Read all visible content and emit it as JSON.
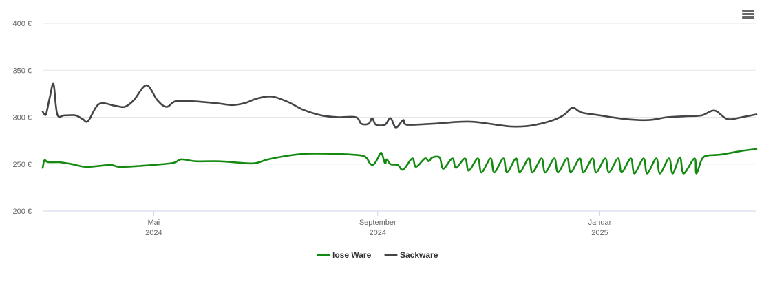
{
  "menu_icon": "hamburger-menu-icon",
  "chart_data": {
    "type": "line",
    "title": "",
    "xlabel": "",
    "ylabel": "",
    "ylim": [
      200,
      400
    ],
    "yticks": [
      {
        "value": 200,
        "label": "200 €"
      },
      {
        "value": 250,
        "label": "250 €"
      },
      {
        "value": 300,
        "label": "300 €"
      },
      {
        "value": 350,
        "label": "350 €"
      },
      {
        "value": 400,
        "label": "400 €"
      }
    ],
    "xlim": [
      "2024-03-01",
      "2025-03-28"
    ],
    "xticks": [
      {
        "date": "2024-05-01",
        "month": "Mai",
        "year": "2024"
      },
      {
        "date": "2024-09-01",
        "month": "September",
        "year": "2024"
      },
      {
        "date": "2025-01-01",
        "month": "Januar",
        "year": "2025"
      }
    ],
    "grid": true,
    "legend_position": "bottom-center",
    "series": [
      {
        "name": "lose Ware",
        "color": "#138A0F",
        "points": [
          [
            "2024-03-01",
            246
          ],
          [
            "2024-03-02",
            254
          ],
          [
            "2024-03-04",
            252
          ],
          [
            "2024-03-10",
            252
          ],
          [
            "2024-03-17",
            250
          ],
          [
            "2024-03-25",
            247
          ],
          [
            "2024-04-07",
            249
          ],
          [
            "2024-04-12",
            247
          ],
          [
            "2024-04-23",
            248
          ],
          [
            "2024-05-11",
            251
          ],
          [
            "2024-05-16",
            255
          ],
          [
            "2024-05-24",
            253
          ],
          [
            "2024-06-06",
            253
          ],
          [
            "2024-06-20",
            251
          ],
          [
            "2024-06-26",
            251
          ],
          [
            "2024-07-03",
            255
          ],
          [
            "2024-07-14",
            259
          ],
          [
            "2024-07-24",
            261
          ],
          [
            "2024-08-06",
            261
          ],
          [
            "2024-08-18",
            260
          ],
          [
            "2024-08-25",
            258
          ],
          [
            "2024-08-28",
            250
          ],
          [
            "2024-08-30",
            250
          ],
          [
            "2024-09-01",
            256
          ],
          [
            "2024-09-03",
            262
          ],
          [
            "2024-09-05",
            251
          ],
          [
            "2024-09-06",
            255
          ],
          [
            "2024-09-08",
            250
          ],
          [
            "2024-09-12",
            249
          ],
          [
            "2024-09-15",
            244
          ],
          [
            "2024-09-20",
            256
          ],
          [
            "2024-09-22",
            247
          ],
          [
            "2024-09-27",
            256
          ],
          [
            "2024-09-29",
            253
          ],
          [
            "2024-10-01",
            257
          ],
          [
            "2024-10-05",
            257
          ],
          [
            "2024-10-07",
            245
          ],
          [
            "2024-10-12",
            256
          ],
          [
            "2024-10-14",
            246
          ],
          [
            "2024-10-19",
            256
          ],
          [
            "2024-10-21",
            243
          ],
          [
            "2024-10-26",
            256
          ],
          [
            "2024-10-28",
            241
          ],
          [
            "2024-11-02",
            256
          ],
          [
            "2024-11-04",
            241
          ],
          [
            "2024-11-09",
            256
          ],
          [
            "2024-11-11",
            241
          ],
          [
            "2024-11-16",
            256
          ],
          [
            "2024-11-18",
            241
          ],
          [
            "2024-11-23",
            256
          ],
          [
            "2024-11-25",
            241
          ],
          [
            "2024-11-30",
            256
          ],
          [
            "2024-12-02",
            241
          ],
          [
            "2024-12-07",
            256
          ],
          [
            "2024-12-09",
            241
          ],
          [
            "2024-12-14",
            256
          ],
          [
            "2024-12-16",
            241
          ],
          [
            "2024-12-21",
            256
          ],
          [
            "2024-12-23",
            241
          ],
          [
            "2024-12-28",
            256
          ],
          [
            "2024-12-30",
            241
          ],
          [
            "2025-01-04",
            256
          ],
          [
            "2025-01-06",
            241
          ],
          [
            "2025-01-11",
            256
          ],
          [
            "2025-01-13",
            241
          ],
          [
            "2025-01-18",
            256
          ],
          [
            "2025-01-20",
            240
          ],
          [
            "2025-01-25",
            256
          ],
          [
            "2025-01-27",
            240
          ],
          [
            "2025-02-01",
            256
          ],
          [
            "2025-02-03",
            240
          ],
          [
            "2025-02-08",
            256
          ],
          [
            "2025-02-10",
            240
          ],
          [
            "2025-02-14",
            257
          ],
          [
            "2025-02-16",
            240
          ],
          [
            "2025-02-22",
            256
          ],
          [
            "2025-02-23",
            240
          ],
          [
            "2025-02-26",
            255
          ],
          [
            "2025-03-01",
            259
          ],
          [
            "2025-03-08",
            260
          ],
          [
            "2025-03-20",
            264
          ],
          [
            "2025-03-28",
            266
          ]
        ]
      },
      {
        "name": "Sackware",
        "color": "#434348",
        "points": [
          [
            "2024-03-01",
            306
          ],
          [
            "2024-03-02",
            303
          ],
          [
            "2024-03-03",
            304
          ],
          [
            "2024-03-05",
            322
          ],
          [
            "2024-03-07",
            335
          ],
          [
            "2024-03-09",
            303
          ],
          [
            "2024-03-13",
            302
          ],
          [
            "2024-03-19",
            302
          ],
          [
            "2024-03-23",
            298
          ],
          [
            "2024-03-26",
            296
          ],
          [
            "2024-04-01",
            314
          ],
          [
            "2024-04-10",
            312
          ],
          [
            "2024-04-15",
            311
          ],
          [
            "2024-04-20",
            318
          ],
          [
            "2024-04-27",
            334
          ],
          [
            "2024-05-03",
            318
          ],
          [
            "2024-05-08",
            311
          ],
          [
            "2024-05-13",
            317
          ],
          [
            "2024-05-22",
            317
          ],
          [
            "2024-06-04",
            315
          ],
          [
            "2024-06-13",
            313
          ],
          [
            "2024-06-20",
            315
          ],
          [
            "2024-06-27",
            320
          ],
          [
            "2024-07-05",
            322
          ],
          [
            "2024-07-14",
            316
          ],
          [
            "2024-07-22",
            308
          ],
          [
            "2024-08-01",
            302
          ],
          [
            "2024-08-10",
            300
          ],
          [
            "2024-08-20",
            300
          ],
          [
            "2024-08-23",
            293
          ],
          [
            "2024-08-27",
            293
          ],
          [
            "2024-08-29",
            299
          ],
          [
            "2024-08-31",
            292
          ],
          [
            "2024-09-05",
            292
          ],
          [
            "2024-09-08",
            299
          ],
          [
            "2024-09-11",
            289
          ],
          [
            "2024-09-15",
            297
          ],
          [
            "2024-09-17",
            292
          ],
          [
            "2024-10-01",
            293
          ],
          [
            "2024-10-15",
            295
          ],
          [
            "2024-10-24",
            295
          ],
          [
            "2024-11-05",
            292
          ],
          [
            "2024-11-14",
            290
          ],
          [
            "2024-11-24",
            291
          ],
          [
            "2024-12-05",
            296
          ],
          [
            "2024-12-12",
            302
          ],
          [
            "2024-12-17",
            310
          ],
          [
            "2024-12-22",
            305
          ],
          [
            "2025-01-01",
            302
          ],
          [
            "2025-01-15",
            298
          ],
          [
            "2025-01-28",
            297
          ],
          [
            "2025-02-07",
            300
          ],
          [
            "2025-02-17",
            301
          ],
          [
            "2025-02-26",
            302
          ],
          [
            "2025-03-05",
            307
          ],
          [
            "2025-03-12",
            298
          ],
          [
            "2025-03-20",
            300
          ],
          [
            "2025-03-28",
            303
          ]
        ]
      }
    ]
  }
}
